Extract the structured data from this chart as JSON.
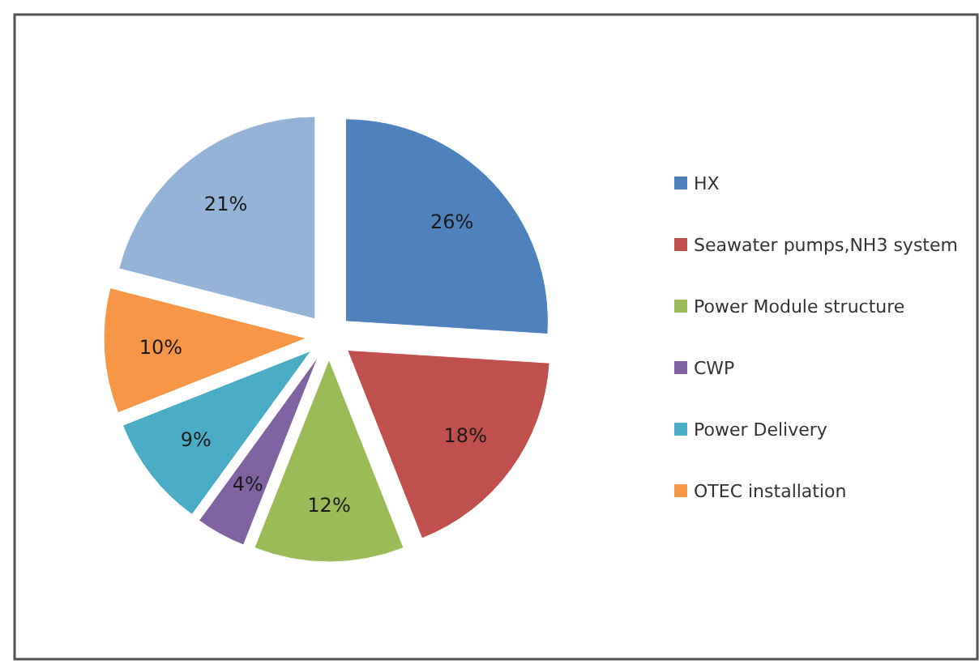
{
  "chart_data": {
    "type": "pie",
    "categories": [
      "HX",
      "Seawater pumps,NH3 system",
      "Power Module structure",
      "CWP",
      "Power Delivery",
      "OTEC installation",
      null
    ],
    "values": [
      26,
      18,
      12,
      4,
      9,
      10,
      21
    ],
    "value_labels": [
      "26%",
      "18%",
      "12%",
      "4%",
      "9%",
      "10%",
      "21%"
    ],
    "colors": [
      "#4f81bd",
      "#c0504d",
      "#9bbb59",
      "#8064a2",
      "#4bacc6",
      "#f79646",
      "#95b3d7"
    ],
    "legend": "right"
  }
}
